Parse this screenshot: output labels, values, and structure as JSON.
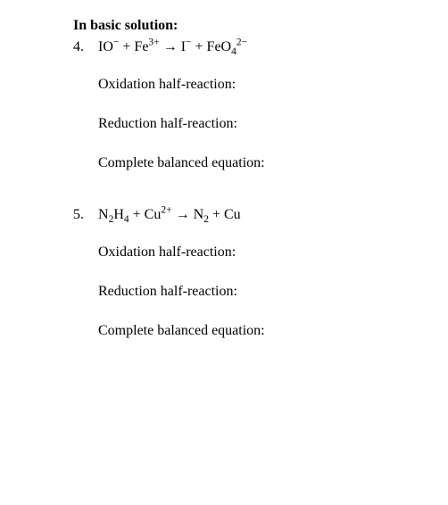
{
  "heading": "In basic solution:",
  "problems": [
    {
      "number": "4.",
      "equation_html": "IO<sup>−</sup> + Fe<sup>3+</sup> <span class=\"arrow\">→</span> I<sup>−</sup> + FeO<sub>4</sub><sup>2−</sup>",
      "labels": {
        "oxidation": "Oxidation half-reaction:",
        "reduction": "Reduction half-reaction:",
        "complete": "Complete balanced equation:"
      }
    },
    {
      "number": "5.",
      "equation_html": "N<sub>2</sub>H<sub>4</sub> + Cu<sup>2+</sup> <span class=\"arrow\">→</span> N<sub>2</sub> + Cu",
      "labels": {
        "oxidation": "Oxidation half-reaction:",
        "reduction": "Reduction half-reaction:",
        "complete": "Complete balanced equation:"
      }
    }
  ],
  "style": {
    "font_family": "Times New Roman",
    "font_size_pt": 12,
    "text_color": "#000000",
    "background_color": "#ffffff",
    "heading_weight": "bold"
  }
}
